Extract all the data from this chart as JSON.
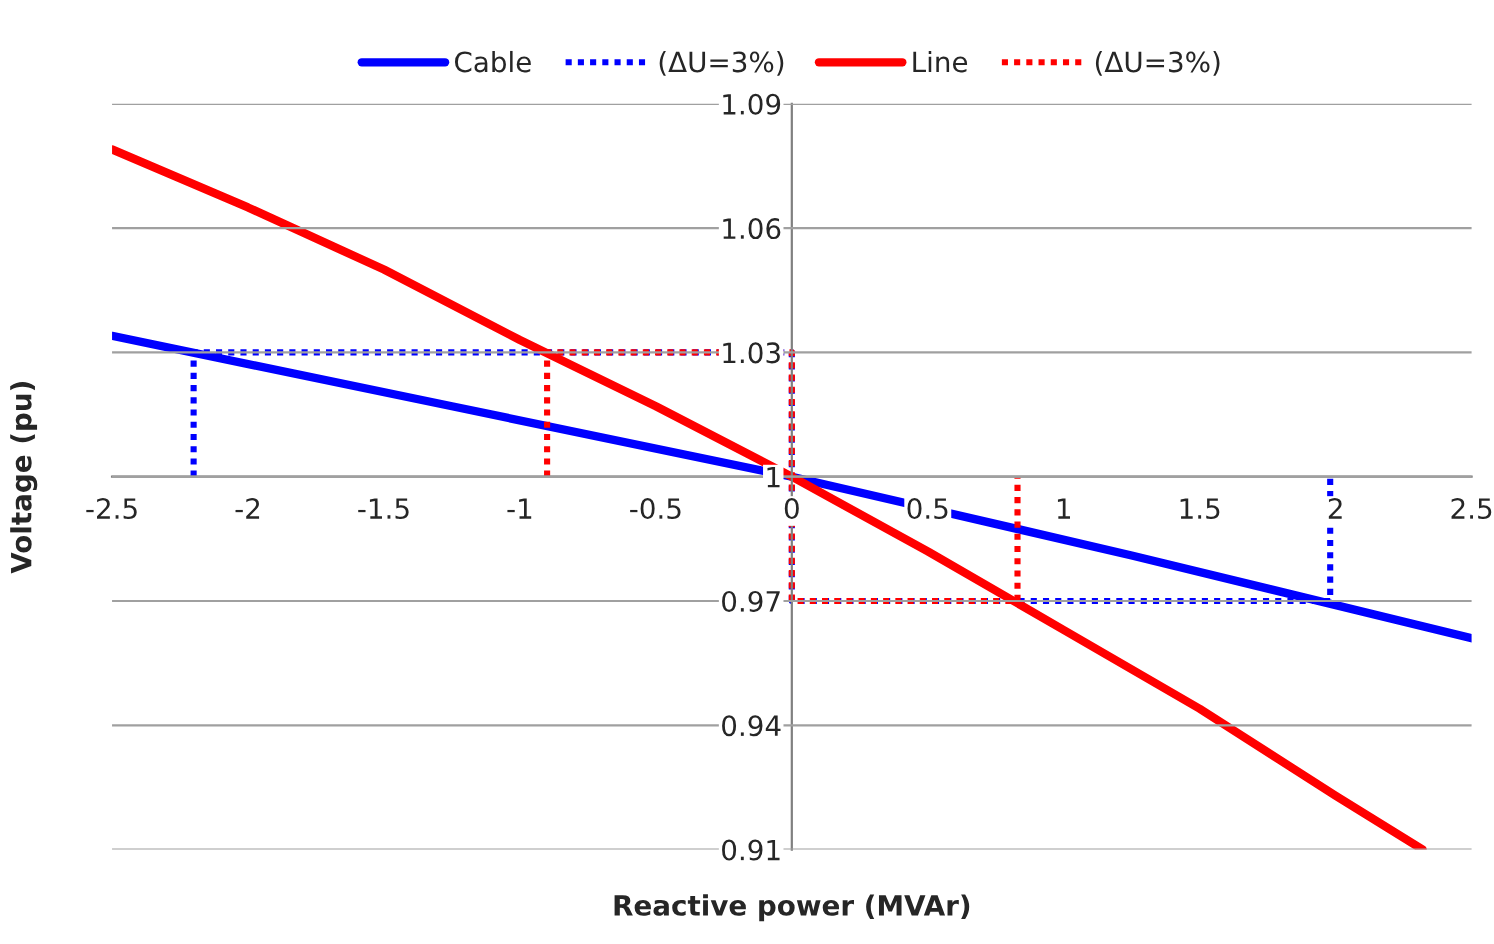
{
  "chart_data": {
    "type": "line",
    "xlabel": "Reactive power (MVAr)",
    "ylabel": "Voltage (pu)",
    "xlim": [
      -2.5,
      2.5
    ],
    "xticks": [
      -2.5,
      -2,
      -1.5,
      -1,
      -0.5,
      0,
      0.5,
      1,
      1.5,
      2,
      2.5
    ],
    "ylim": [
      0.91,
      1.09
    ],
    "yticks": [
      0.91,
      0.94,
      0.97,
      1,
      1.03,
      1.06,
      1.09
    ],
    "grid": "y",
    "legend": "top",
    "marker": "none",
    "series": [
      {
        "name": "Cable",
        "color": "#0000ff",
        "line_style": "solid",
        "x": [
          -2.5,
          -1.25,
          0,
          1.25,
          2.5
        ],
        "values": [
          1.034,
          1.017,
          1.0,
          0.981,
          0.961
        ]
      },
      {
        "name": "(ΔU=3%)",
        "color": "#0000ff",
        "line_style": "dotted",
        "x": [
          -2.2,
          -2.2,
          0,
          0,
          1.98,
          1.98
        ],
        "values": [
          1.0,
          1.03,
          1.03,
          0.97,
          0.97,
          1.0
        ]
      },
      {
        "name": "Line",
        "color": "#ff0000",
        "line_style": "solid",
        "x": [
          -2.5,
          -2,
          -1.5,
          -1,
          -0.5,
          0,
          0.5,
          1,
          1.5,
          2,
          2.32
        ],
        "values": [
          1.079,
          1.065,
          1.05,
          1.033,
          1.017,
          1.0,
          0.982,
          0.963,
          0.944,
          0.923,
          0.91
        ]
      },
      {
        "name": "(ΔU=3%)",
        "color": "#ff0000",
        "line_style": "dotted",
        "x": [
          -0.9,
          -0.9,
          0,
          0,
          0.83,
          0.83
        ],
        "values": [
          1.0,
          1.03,
          1.03,
          0.97,
          0.97,
          1.0
        ]
      }
    ]
  }
}
